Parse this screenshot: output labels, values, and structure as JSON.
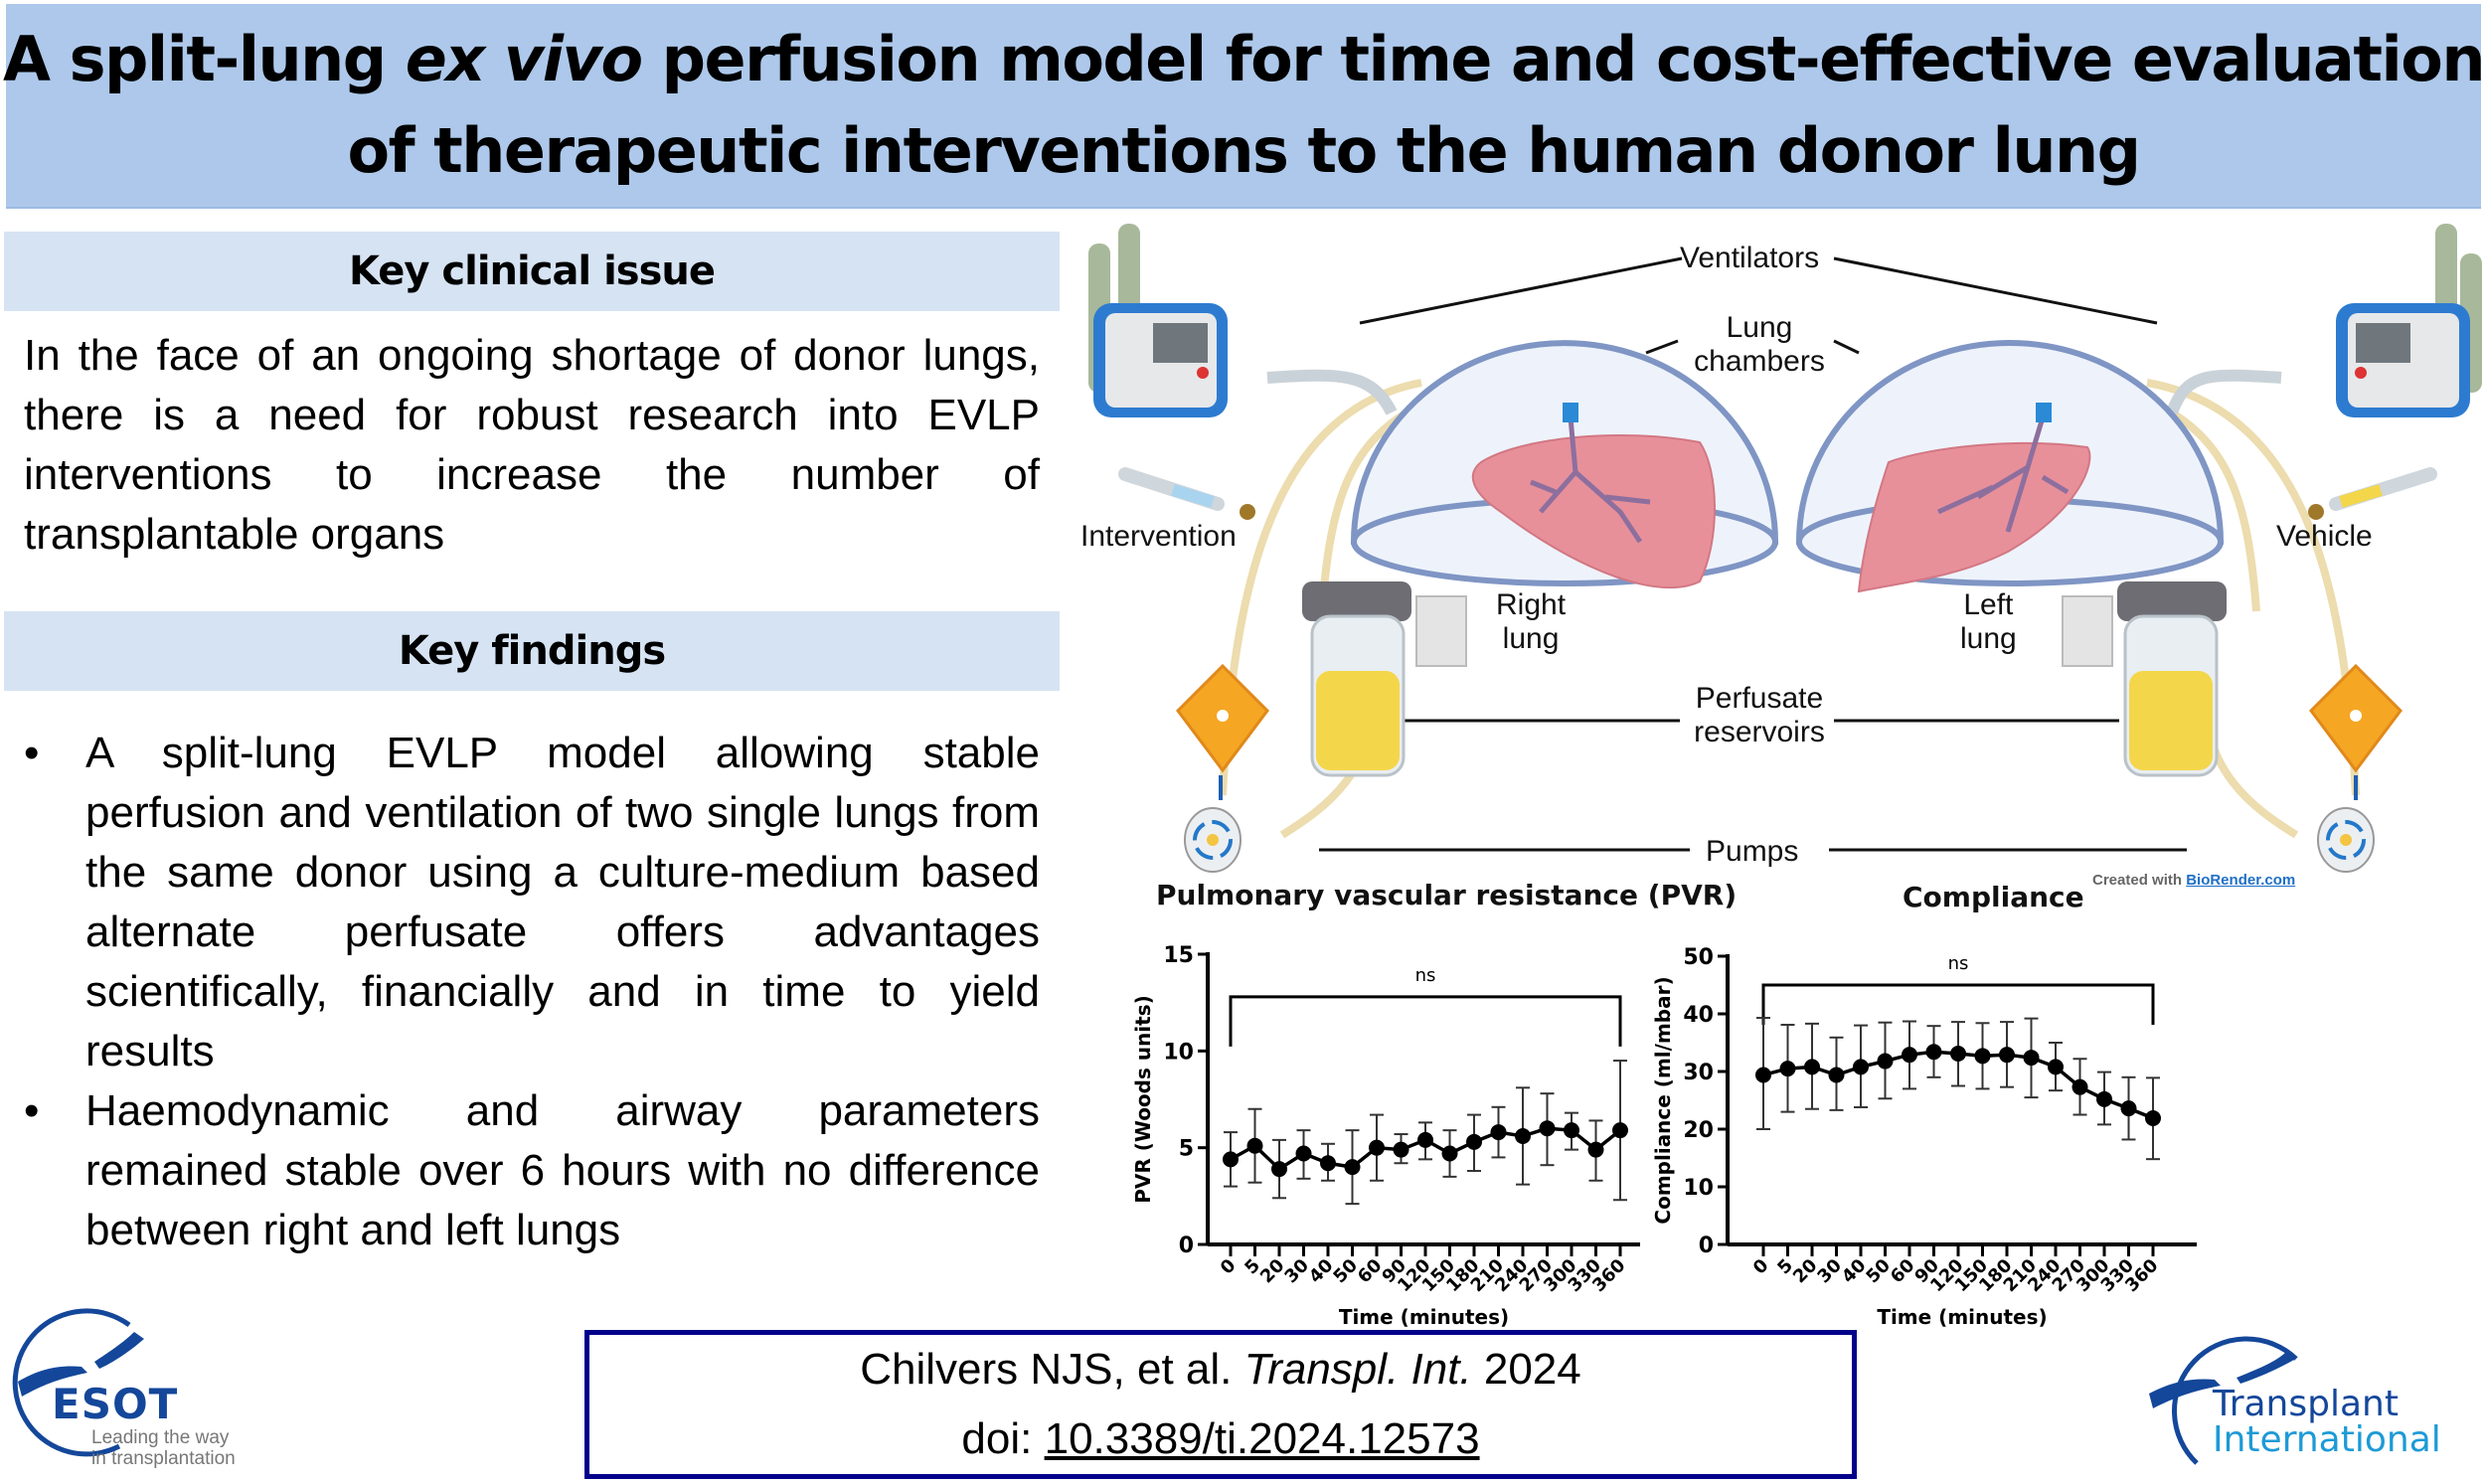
{
  "title": {
    "line1_pre": "A split-lung ",
    "line1_italic": "ex vivo",
    "line1_post": " perfusion model for time and cost-effective evaluation",
    "line2": "of therapeutic interventions to the human donor lung"
  },
  "key_clinical_issue": {
    "heading": "Key clinical issue",
    "text": "In the face of an ongoing shortage of donor lungs, there is a need for robust research into EVLP interventions to increase the number of transplantable organs"
  },
  "key_findings": {
    "heading": "Key findings",
    "bullet_char": "•",
    "items": [
      "A split-lung EVLP model allowing stable perfusion and ventilation of two single lungs from the same donor using a culture-medium based alternate perfusate offers advantages scientifically, financially and in time to yield results",
      "Haemodynamic and airway parameters remained stable over 6 hours with no difference between right and left lungs"
    ]
  },
  "diagram": {
    "labels": {
      "ventilators": "Ventilators",
      "lung_chambers_1": "Lung",
      "lung_chambers_2": "chambers",
      "intervention": "Intervention",
      "vehicle": "Vehicle",
      "right_lung_1": "Right",
      "right_lung_2": "lung",
      "left_lung_1": "Left",
      "left_lung_2": "lung",
      "perfusate_1": "Perfusate",
      "perfusate_2": "reservoirs",
      "pumps": "Pumps"
    },
    "credit_prefix": "Created with ",
    "credit_link": "BioRender.com",
    "colors": {
      "ventilator_blue": "#2d7bd0",
      "lung_pink": "#e8909a",
      "perfusate_yellow": "#f4d64a",
      "oxygenator_orange": "#f5a623",
      "tube_beige": "#ecdcae",
      "dome_outline": "#7f95c4",
      "gas_cylinder": "#a8b89a"
    }
  },
  "chart_data": [
    {
      "type": "line",
      "title": "Pulmonary vascular resistance (PVR)",
      "xlabel": "Time (minutes)",
      "ylabel": "PVR (Woods units)",
      "categories": [
        "0",
        "5",
        "20",
        "30",
        "40",
        "50",
        "60",
        "90",
        "120",
        "150",
        "180",
        "210",
        "240",
        "270",
        "300",
        "330",
        "360"
      ],
      "ylim": [
        0,
        15
      ],
      "yticks": [
        0,
        5,
        10,
        15
      ],
      "series": [
        {
          "name": "PVR",
          "values": [
            4.4,
            5.1,
            3.9,
            4.7,
            4.2,
            4.0,
            5.0,
            4.9,
            5.4,
            4.7,
            5.3,
            5.8,
            5.6,
            6.0,
            5.9,
            4.9,
            5.9
          ],
          "error_low": [
            3.0,
            3.2,
            2.4,
            3.4,
            3.3,
            2.1,
            3.3,
            4.2,
            4.4,
            3.5,
            3.8,
            4.5,
            3.1,
            4.1,
            4.9,
            3.3,
            2.3
          ],
          "error_high": [
            5.8,
            7.0,
            5.4,
            5.9,
            5.2,
            5.9,
            6.7,
            5.7,
            6.3,
            5.9,
            6.7,
            7.1,
            8.1,
            7.8,
            6.8,
            6.4,
            9.5
          ]
        }
      ],
      "annotation": {
        "text": "ns",
        "from": "0",
        "to": "360",
        "bracket_y": 12.8
      },
      "grid": false,
      "legend": "none"
    },
    {
      "type": "line",
      "title": "Compliance",
      "xlabel": "Time (minutes)",
      "ylabel": "Compliance (ml/mbar)",
      "categories": [
        "0",
        "5",
        "20",
        "30",
        "40",
        "50",
        "60",
        "90",
        "120",
        "150",
        "180",
        "210",
        "240",
        "270",
        "300",
        "330",
        "360"
      ],
      "ylim": [
        0,
        50
      ],
      "yticks": [
        0,
        10,
        20,
        30,
        40,
        50
      ],
      "series": [
        {
          "name": "Compliance",
          "values": [
            29.4,
            30.5,
            30.8,
            29.4,
            30.8,
            31.8,
            32.9,
            33.4,
            33.1,
            32.7,
            32.9,
            32.4,
            30.8,
            27.3,
            25.2,
            23.6,
            21.9
          ],
          "error_low": [
            20.0,
            23.0,
            23.5,
            23.3,
            23.8,
            25.3,
            27.0,
            29.0,
            27.5,
            27.0,
            27.3,
            25.5,
            26.7,
            22.5,
            20.8,
            18.2,
            14.8
          ],
          "error_high": [
            39.3,
            38.1,
            38.3,
            35.9,
            38.0,
            38.5,
            38.7,
            37.9,
            38.6,
            38.4,
            38.6,
            39.2,
            35.0,
            32.2,
            29.9,
            29.0,
            28.9
          ]
        }
      ],
      "annotation": {
        "text": "ns",
        "from": "0",
        "to": "360",
        "bracket_y": 45
      },
      "grid": false,
      "legend": "none"
    }
  ],
  "citation": {
    "authors": "Chilvers NJS, et al. ",
    "journal": "Transpl. Int.",
    "year": " 2024",
    "doi_prefix": "doi: ",
    "doi": "10.3389/ti.2024.12573",
    "border_color": "#00008b"
  },
  "logos": {
    "esot": {
      "name": "ESOT",
      "tagline_1": "Leading the way",
      "tagline_2": "in transplantation"
    },
    "ti": {
      "line1": "Transplant",
      "line2": "International"
    },
    "brand_blue": "#14479a",
    "light_blue": "#1d9ad6"
  }
}
